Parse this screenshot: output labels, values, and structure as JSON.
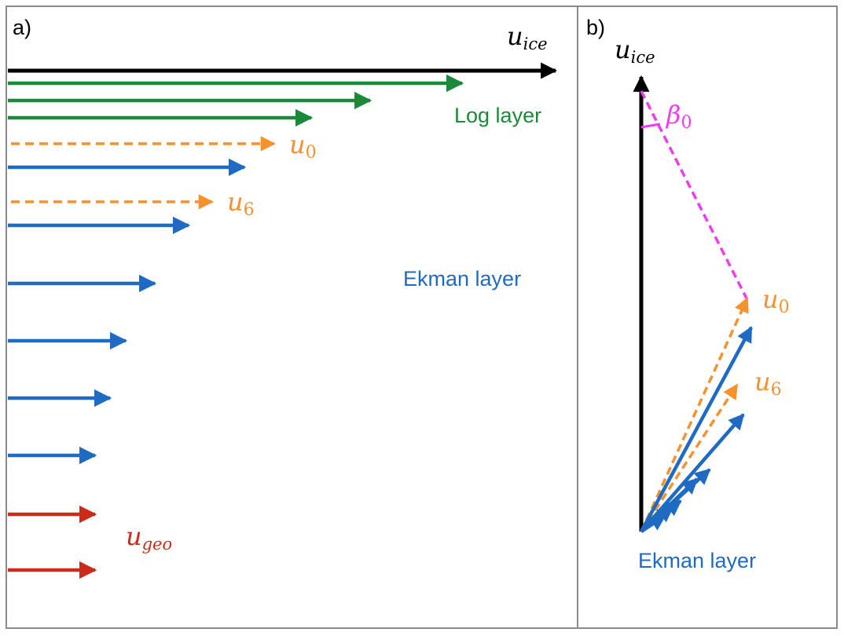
{
  "colors": {
    "black": "#000000",
    "green": "#1a8a3a",
    "orange": "#f5922f",
    "blue": "#1f6bc4",
    "red": "#cc2a1a",
    "magenta": "#f03cf0",
    "frame": "#8a8a8a"
  },
  "panel_a": {
    "label": "a)",
    "u_ice": {
      "sym": "u",
      "sub": "ice"
    },
    "log_layer": "Log layer",
    "u0": {
      "sym": "u",
      "sub": "0"
    },
    "u6": {
      "sym": "u",
      "sub": "6"
    },
    "ekman_layer": "Ekman layer",
    "u_geo": {
      "sym": "u",
      "sub": "geo"
    }
  },
  "panel_b": {
    "label": "b)",
    "u_ice": {
      "sym": "u",
      "sub": "ice"
    },
    "beta0": {
      "sym": "β",
      "sub": "0"
    },
    "u0": {
      "sym": "u",
      "sub": "0"
    },
    "u6": {
      "sym": "u",
      "sub": "6"
    },
    "ekman_layer": "Ekman layer"
  }
}
